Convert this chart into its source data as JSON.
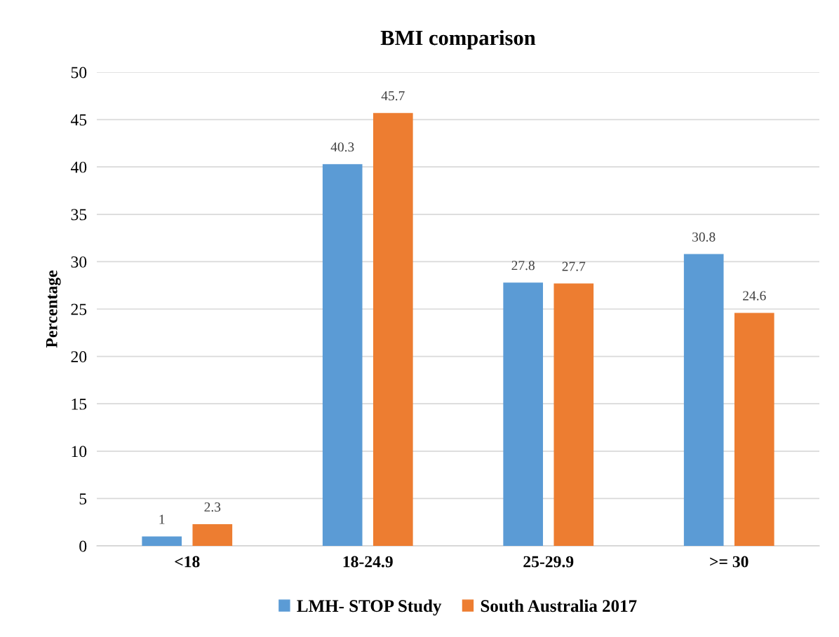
{
  "chart_data": {
    "type": "bar",
    "title": "BMI comparison",
    "ylabel": "Percentage",
    "categories": [
      "<18",
      "18-24.9",
      "25-29.9",
      ">= 30"
    ],
    "series": [
      {
        "name": "LMH- STOP Study",
        "color": "#5b9bd5",
        "values": [
          1,
          40.3,
          27.8,
          30.8
        ]
      },
      {
        "name": "South Australia 2017",
        "color": "#ed7d31",
        "values": [
          2.3,
          45.7,
          27.7,
          24.6
        ]
      }
    ],
    "ylim": [
      0,
      50
    ],
    "yticks": [
      0,
      5,
      10,
      15,
      20,
      25,
      30,
      35,
      40,
      45,
      50
    ],
    "grid": "y",
    "legend": "bottom",
    "data_labels": true
  }
}
